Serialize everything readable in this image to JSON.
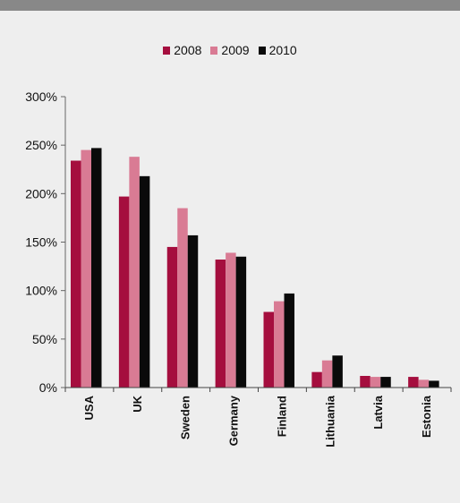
{
  "chart_data": {
    "type": "bar",
    "categories": [
      "USA",
      "UK",
      "Sweden",
      "Germany",
      "Finland",
      "Lithuania",
      "Latvia",
      "Estonia"
    ],
    "series": [
      {
        "name": "2008",
        "color": "#a50e3e",
        "values": [
          234,
          197,
          145,
          132,
          78,
          16,
          12,
          11
        ]
      },
      {
        "name": "2009",
        "color": "#d97b94",
        "values": [
          245,
          238,
          185,
          139,
          89,
          28,
          11,
          8
        ]
      },
      {
        "name": "2010",
        "color": "#0a0a0a",
        "values": [
          247,
          218,
          157,
          135,
          97,
          33,
          11,
          7
        ]
      }
    ],
    "y_ticks": [
      "0%",
      "50%",
      "100%",
      "150%",
      "200%",
      "250%",
      "300%"
    ],
    "ylim": [
      0,
      300
    ],
    "grid": false,
    "legend_position": "top-center"
  }
}
